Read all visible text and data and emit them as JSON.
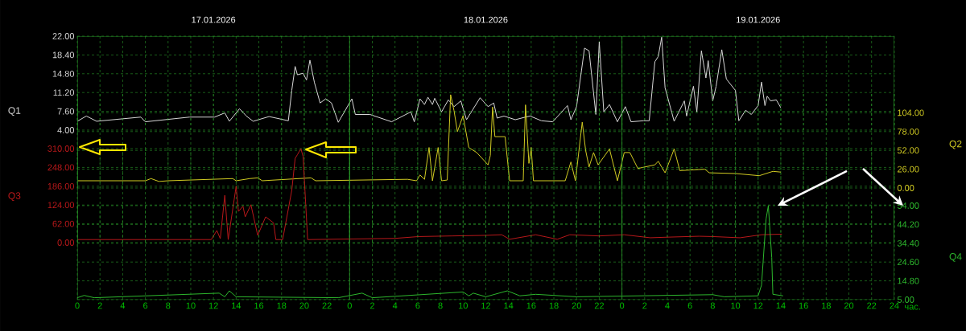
{
  "chart_data": [
    {
      "type": "line",
      "ylabel": "Q1",
      "grid": true,
      "tick_labels": "y",
      "xlim": [
        "2026-01-17T00:00",
        "2026-01-20T00:00"
      ],
      "x2lim": [
        "2026-01-17T00:00",
        "2026-01-20T00:00"
      ],
      "x2ticks": [
        {
          "value": "2026-01-17T12:00",
          "label": "17.01.2026"
        },
        {
          "value": "2026-01-18T12:00",
          "label": "18.01.2026"
        },
        {
          "value": "2026-01-19T12:00",
          "label": "19.01.2026"
        }
      ],
      "ylim": [
        4,
        22
      ],
      "yticks": [
        {
          "value": 4,
          "label": "4.00"
        },
        {
          "value": 7.6,
          "label": "7.60"
        },
        {
          "value": 11.2,
          "label": "11.20"
        },
        {
          "value": 14.8,
          "label": "14.80"
        },
        {
          "value": 18.4,
          "label": "18.40"
        },
        {
          "value": 22,
          "label": "22.00"
        }
      ],
      "series": [
        {
          "color": "#d8d8d8",
          "x": [
            "2026-01-17T00:00",
            "2026-01-17T00:48",
            "2026-01-17T01:42",
            "2026-01-17T05:36",
            "2026-01-17T06:00",
            "2026-01-17T09:54",
            "2026-01-17T12:06",
            "2026-01-17T13:00",
            "2026-01-17T13:24",
            "2026-01-17T14:18",
            "2026-01-17T14:54",
            "2026-01-17T15:30",
            "2026-01-17T16:54",
            "2026-01-17T18:36",
            "2026-01-17T18:54",
            "2026-01-17T19:12",
            "2026-01-17T19:24",
            "2026-01-17T19:54",
            "2026-01-17T20:12",
            "2026-01-17T20:30",
            "2026-01-17T20:54",
            "2026-01-17T21:24",
            "2026-01-17T21:54",
            "2026-01-17T22:24",
            "2026-01-17T23:00",
            "2026-01-18T00:12",
            "2026-01-18T00:30",
            "2026-01-18T01:48",
            "2026-01-18T03:42",
            "2026-01-18T05:24",
            "2026-01-18T05:42",
            "2026-01-18T06:12",
            "2026-01-18T06:36",
            "2026-01-18T06:54",
            "2026-01-18T07:18",
            "2026-01-18T07:30",
            "2026-01-18T08:06",
            "2026-01-18T08:42",
            "2026-01-18T09:12",
            "2026-01-18T09:48",
            "2026-01-18T10:18",
            "2026-01-18T11:30",
            "2026-01-18T12:12",
            "2026-01-18T12:42",
            "2026-01-18T13:00",
            "2026-01-18T13:36",
            "2026-01-18T14:36",
            "2026-01-18T15:30",
            "2026-01-18T15:54",
            "2026-01-18T16:54",
            "2026-01-18T17:54",
            "2026-01-18T19:12",
            "2026-01-18T19:30",
            "2026-01-18T20:00",
            "2026-01-18T20:42",
            "2026-01-18T21:06",
            "2026-01-18T21:42",
            "2026-01-18T22:00",
            "2026-01-18T22:24",
            "2026-01-18T22:54",
            "2026-01-18T23:36",
            "2026-01-19T00:18",
            "2026-01-19T00:48",
            "2026-01-19T01:54",
            "2026-01-19T02:24",
            "2026-01-19T02:54",
            "2026-01-19T03:12",
            "2026-01-19T03:30",
            "2026-01-19T03:48",
            "2026-01-19T04:36",
            "2026-01-19T05:30",
            "2026-01-19T05:42",
            "2026-01-19T06:18",
            "2026-01-19T06:36",
            "2026-01-19T07:00",
            "2026-01-19T07:24",
            "2026-01-19T07:36",
            "2026-01-19T08:00",
            "2026-01-19T08:18",
            "2026-01-19T08:48",
            "2026-01-19T09:12",
            "2026-01-19T10:00",
            "2026-01-19T10:18",
            "2026-01-19T10:54",
            "2026-01-19T11:24",
            "2026-01-19T12:00",
            "2026-01-19T12:18",
            "2026-01-19T12:36",
            "2026-01-19T12:48",
            "2026-01-19T13:06",
            "2026-01-19T13:36",
            "2026-01-19T14:00"
          ],
          "values": [
            5.7,
            6.7,
            5.7,
            6.5,
            5.6,
            6.5,
            6.5,
            7.3,
            5.7,
            8.1,
            6.7,
            5.7,
            6.6,
            5.8,
            11.6,
            16.2,
            14.6,
            14.9,
            13.6,
            17.4,
            13.1,
            9.2,
            10.0,
            9.2,
            5.5,
            10.0,
            7.0,
            7.0,
            5.6,
            7.5,
            5.6,
            10.0,
            8.9,
            10.3,
            8.9,
            10.1,
            7.5,
            9.8,
            8.5,
            9.6,
            6.0,
            10.2,
            8.5,
            9.2,
            6.3,
            6.7,
            6.0,
            6.5,
            6.7,
            5.8,
            5.6,
            8.7,
            6.0,
            8.5,
            19.7,
            19.2,
            7.0,
            20.9,
            7.5,
            8.9,
            5.6,
            8.5,
            5.6,
            5.8,
            5.8,
            17.1,
            18.1,
            21.8,
            12.1,
            5.7,
            9.6,
            6.7,
            12.4,
            7.5,
            19.2,
            14.0,
            17.3,
            9.6,
            12.4,
            19.4,
            13.8,
            11.6,
            5.8,
            7.8,
            7.0,
            8.7,
            13.2,
            8.7,
            10.5,
            9.6,
            9.8,
            8.3
          ]
        }
      ]
    },
    {
      "type": "line",
      "y2label": "Q2",
      "grid": true,
      "tick_labels": "y",
      "xlim": [
        "2026-01-17T00:00",
        "2026-01-20T00:00"
      ],
      "y2lim": [
        0,
        130
      ],
      "y2ticks": [
        {
          "value": 0,
          "label": "0.00"
        },
        {
          "value": 26,
          "label": "26.00"
        },
        {
          "value": 52,
          "label": "52.00"
        },
        {
          "value": 78,
          "label": "78.00"
        },
        {
          "value": 104,
          "label": "104.00"
        }
      ],
      "series": [
        {
          "color": "#d2cc22",
          "axis": "y2",
          "x": [
            "2026-01-17T00:00",
            "2026-01-17T06:00",
            "2026-01-17T06:30",
            "2026-01-17T07:12",
            "2026-01-17T08:00",
            "2026-01-17T13:42",
            "2026-01-17T14:00",
            "2026-01-17T15:12",
            "2026-01-17T15:54",
            "2026-01-17T16:18",
            "2026-01-17T20:36",
            "2026-01-17T21:00",
            "2026-01-18T05:06",
            "2026-01-18T05:54",
            "2026-01-18T06:12",
            "2026-01-18T06:36",
            "2026-01-18T07:00",
            "2026-01-18T07:18",
            "2026-01-18T07:48",
            "2026-01-18T08:06",
            "2026-01-18T08:36",
            "2026-01-18T08:54",
            "2026-01-18T09:12",
            "2026-01-18T09:30",
            "2026-01-18T10:00",
            "2026-01-18T10:30",
            "2026-01-18T11:12",
            "2026-01-18T12:12",
            "2026-01-18T12:24",
            "2026-01-18T12:36",
            "2026-01-18T12:48",
            "2026-01-18T13:42",
            "2026-01-18T14:06",
            "2026-01-18T15:18",
            "2026-01-18T15:30",
            "2026-01-18T15:48",
            "2026-01-18T16:00",
            "2026-01-18T16:12",
            "2026-01-18T19:00",
            "2026-01-18T19:30",
            "2026-01-18T19:54",
            "2026-01-18T20:30",
            "2026-01-18T20:48",
            "2026-01-18T21:06",
            "2026-01-18T21:30",
            "2026-01-18T21:54",
            "2026-01-18T22:54",
            "2026-01-18T23:36",
            "2026-01-19T00:12",
            "2026-01-19T00:42",
            "2026-01-19T01:24",
            "2026-01-19T02:54",
            "2026-01-19T03:12",
            "2026-01-19T03:48",
            "2026-01-19T04:36",
            "2026-01-19T05:06",
            "2026-01-19T07:18",
            "2026-01-19T07:42",
            "2026-01-19T10:00",
            "2026-01-19T12:06",
            "2026-01-19T13:18",
            "2026-01-19T14:00"
          ],
          "values": [
            10,
            10,
            13,
            9,
            10,
            13,
            10,
            13,
            14,
            10,
            14,
            10,
            12,
            10,
            18,
            12,
            56,
            10,
            56,
            10,
            11,
            129,
            107,
            78,
            100,
            56,
            49,
            32,
            45,
            112,
            71,
            71,
            10,
            10,
            115,
            34,
            56,
            10,
            10,
            36,
            10,
            91,
            52,
            29,
            49,
            32,
            54,
            10,
            49,
            49,
            27,
            32,
            37,
            21,
            54,
            24,
            26,
            21,
            20,
            17,
            23,
            22
          ]
        }
      ]
    },
    {
      "type": "line",
      "ylabel": "Q3",
      "grid": true,
      "tick_labels": "y",
      "xlim": [
        "2026-01-17T00:00",
        "2026-01-20T00:00"
      ],
      "ylim": [
        0,
        310
      ],
      "yticks": [
        {
          "value": 0,
          "label": "0.00"
        },
        {
          "value": 62,
          "label": "62.00"
        },
        {
          "value": 124,
          "label": "124.00"
        },
        {
          "value": 186,
          "label": "186.00"
        },
        {
          "value": 248,
          "label": "248.00"
        },
        {
          "value": 310,
          "label": "310.00"
        }
      ],
      "series": [
        {
          "color": "#b8181a",
          "x": [
            "2026-01-17T00:00",
            "2026-01-17T11:48",
            "2026-01-17T12:18",
            "2026-01-17T12:36",
            "2026-01-17T13:00",
            "2026-01-17T13:18",
            "2026-01-17T14:00",
            "2026-01-17T14:12",
            "2026-01-17T14:36",
            "2026-01-17T14:48",
            "2026-01-17T15:18",
            "2026-01-17T15:54",
            "2026-01-17T16:36",
            "2026-01-17T17:18",
            "2026-01-17T17:30",
            "2026-01-17T18:06",
            "2026-01-17T18:54",
            "2026-01-17T19:12",
            "2026-01-17T19:24",
            "2026-01-17T19:42",
            "2026-01-17T19:54",
            "2026-01-17T20:18",
            "2026-01-18T04:00",
            "2026-01-18T06:06",
            "2026-01-18T09:00",
            "2026-01-18T12:00",
            "2026-01-18T13:24",
            "2026-01-18T14:06",
            "2026-01-18T16:24",
            "2026-01-18T18:18",
            "2026-01-18T19:24",
            "2026-01-18T22:00",
            "2026-01-19T00:12",
            "2026-01-19T02:30",
            "2026-01-19T04:00",
            "2026-01-19T06:48",
            "2026-01-19T08:00",
            "2026-01-19T10:24",
            "2026-01-19T12:18",
            "2026-01-19T14:06"
          ],
          "values": [
            10,
            10,
            40,
            13,
            156,
            10,
            186,
            103,
            120,
            85,
            125,
            24,
            85,
            65,
            10,
            10,
            172,
            278,
            290,
            310,
            284,
            10,
            14,
            20,
            22,
            24,
            26,
            11,
            26,
            11,
            26,
            22,
            26,
            16,
            18,
            21,
            20,
            16,
            26,
            28
          ]
        }
      ]
    },
    {
      "type": "line",
      "y2label": "Q4",
      "xlabel": "час.",
      "grid": true,
      "xlim": [
        "2026-01-17T00:00",
        "2026-01-20T00:00"
      ],
      "xticks": [
        {
          "value": "2026-01-17T00:00",
          "label": "0"
        },
        {
          "value": "2026-01-17T02:00",
          "label": "2"
        },
        {
          "value": "2026-01-17T04:00",
          "label": "4"
        },
        {
          "value": "2026-01-17T06:00",
          "label": "6"
        },
        {
          "value": "2026-01-17T08:00",
          "label": "8"
        },
        {
          "value": "2026-01-17T10:00",
          "label": "10"
        },
        {
          "value": "2026-01-17T12:00",
          "label": "12"
        },
        {
          "value": "2026-01-17T14:00",
          "label": "14"
        },
        {
          "value": "2026-01-17T16:00",
          "label": "16"
        },
        {
          "value": "2026-01-17T18:00",
          "label": "18"
        },
        {
          "value": "2026-01-17T20:00",
          "label": "20"
        },
        {
          "value": "2026-01-17T22:00",
          "label": "22"
        },
        {
          "value": "2026-01-18T00:00",
          "label": "0"
        },
        {
          "value": "2026-01-18T02:00",
          "label": "2"
        },
        {
          "value": "2026-01-18T04:00",
          "label": "4"
        },
        {
          "value": "2026-01-18T06:00",
          "label": "6"
        },
        {
          "value": "2026-01-18T08:00",
          "label": "8"
        },
        {
          "value": "2026-01-18T10:00",
          "label": "10"
        },
        {
          "value": "2026-01-18T12:00",
          "label": "12"
        },
        {
          "value": "2026-01-18T14:00",
          "label": "14"
        },
        {
          "value": "2026-01-18T16:00",
          "label": "16"
        },
        {
          "value": "2026-01-18T18:00",
          "label": "18"
        },
        {
          "value": "2026-01-18T20:00",
          "label": "20"
        },
        {
          "value": "2026-01-18T22:00",
          "label": "22"
        },
        {
          "value": "2026-01-19T00:00",
          "label": "0"
        },
        {
          "value": "2026-01-19T02:00",
          "label": "2"
        },
        {
          "value": "2026-01-19T04:00",
          "label": "4"
        },
        {
          "value": "2026-01-19T06:00",
          "label": "6"
        },
        {
          "value": "2026-01-19T08:00",
          "label": "8"
        },
        {
          "value": "2026-01-19T10:00",
          "label": "10"
        },
        {
          "value": "2026-01-19T12:00",
          "label": "12"
        },
        {
          "value": "2026-01-19T14:00",
          "label": "14"
        },
        {
          "value": "2026-01-19T16:00",
          "label": "16"
        },
        {
          "value": "2026-01-19T18:00",
          "label": "18"
        },
        {
          "value": "2026-01-19T20:00",
          "label": "20"
        },
        {
          "value": "2026-01-19T22:00",
          "label": "22"
        },
        {
          "value": "2026-01-20T00:00",
          "label": "24"
        }
      ],
      "y2lim": [
        5,
        54
      ],
      "y2ticks": [
        {
          "value": 5,
          "label": "5.00"
        },
        {
          "value": 14.8,
          "label": "14.80"
        },
        {
          "value": 24.6,
          "label": "24.60"
        },
        {
          "value": 34.4,
          "label": "34.40"
        },
        {
          "value": 44.2,
          "label": "44.20"
        },
        {
          "value": 54,
          "label": "54.00"
        }
      ],
      "series": [
        {
          "color": "#2db82d",
          "axis": "y2",
          "x": [
            "2026-01-17T00:00",
            "2026-01-17T00:36",
            "2026-01-17T01:30",
            "2026-01-17T12:30",
            "2026-01-17T13:00",
            "2026-01-17T13:24",
            "2026-01-17T14:00",
            "2026-01-17T23:00",
            "2026-01-18T01:06",
            "2026-01-18T02:00",
            "2026-01-18T10:00",
            "2026-01-18T10:30",
            "2026-01-18T10:54",
            "2026-01-18T12:00",
            "2026-01-18T13:54",
            "2026-01-18T15:00",
            "2026-01-18T16:24",
            "2026-01-18T20:00",
            "2026-01-19T08:00",
            "2026-01-19T09:00",
            "2026-01-19T12:00",
            "2026-01-19T12:18",
            "2026-01-19T12:42",
            "2026-01-19T12:54",
            "2026-01-19T13:12",
            "2026-01-19T13:18",
            "2026-01-19T14:12"
          ],
          "values": [
            6,
            7.2,
            6,
            8.4,
            6.5,
            9.6,
            6.5,
            6,
            8.4,
            6,
            9,
            7,
            8.4,
            6.5,
            9.6,
            7,
            7.8,
            6.5,
            7.6,
            6.5,
            7,
            12.6,
            47,
            54,
            27,
            7.8,
            7
          ]
        }
      ]
    }
  ]
}
